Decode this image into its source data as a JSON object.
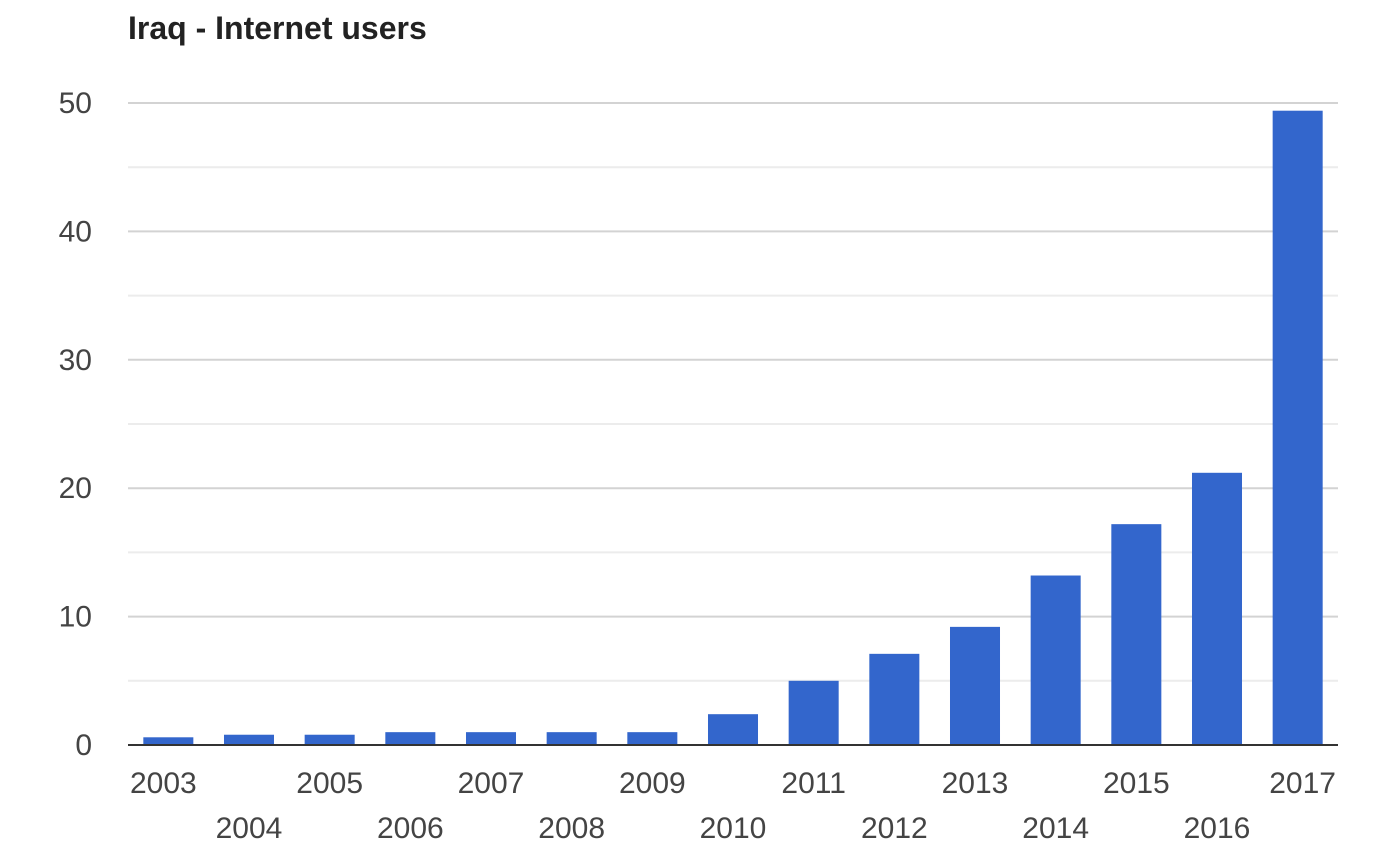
{
  "chart_data": {
    "type": "bar",
    "title": "Iraq - Internet users",
    "xlabel": "",
    "ylabel": "",
    "categories": [
      "2003",
      "2004",
      "2005",
      "2006",
      "2007",
      "2008",
      "2009",
      "2010",
      "2011",
      "2012",
      "2013",
      "2014",
      "2015",
      "2016",
      "2017"
    ],
    "values": [
      0.6,
      0.8,
      0.8,
      1.0,
      1.0,
      1.0,
      1.0,
      2.4,
      5.0,
      7.1,
      9.2,
      13.2,
      17.2,
      21.2,
      49.4
    ],
    "ylim": [
      0,
      50
    ],
    "yticks": [
      0,
      10,
      20,
      30,
      40,
      50
    ],
    "grid": true,
    "legend": "none",
    "colors": {
      "bar": "#3366cc",
      "grid_major": "#d3d3d3",
      "grid_minor": "#ececec",
      "axis": "#333333"
    }
  }
}
